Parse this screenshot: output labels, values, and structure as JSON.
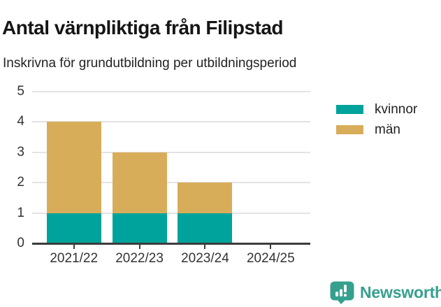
{
  "chart_data": {
    "type": "bar",
    "stacked": true,
    "title": "Antal värnpliktiga från Filipstad",
    "subtitle": "Inskrivna för grundutbildning per utbildningsperiod",
    "categories": [
      "2021/22",
      "2022/23",
      "2023/24",
      "2024/25"
    ],
    "series": [
      {
        "name": "kvinnor",
        "color": "#00a39b",
        "values": [
          1,
          1,
          1,
          0
        ]
      },
      {
        "name": "män",
        "color": "#d8ad5a",
        "values": [
          3,
          2,
          1,
          0
        ]
      }
    ],
    "totals": [
      4,
      3,
      2,
      0
    ],
    "ylim": [
      0,
      5
    ],
    "yticks": [
      0,
      1,
      2,
      3,
      4,
      5
    ],
    "grid": true,
    "legend_position": "right",
    "grid_color": "#e3e3e3",
    "axis_color": "#3c3c3c",
    "axis_text_color": "#333333"
  },
  "branding": {
    "name": "Newsworthy",
    "color": "#35a08d"
  }
}
